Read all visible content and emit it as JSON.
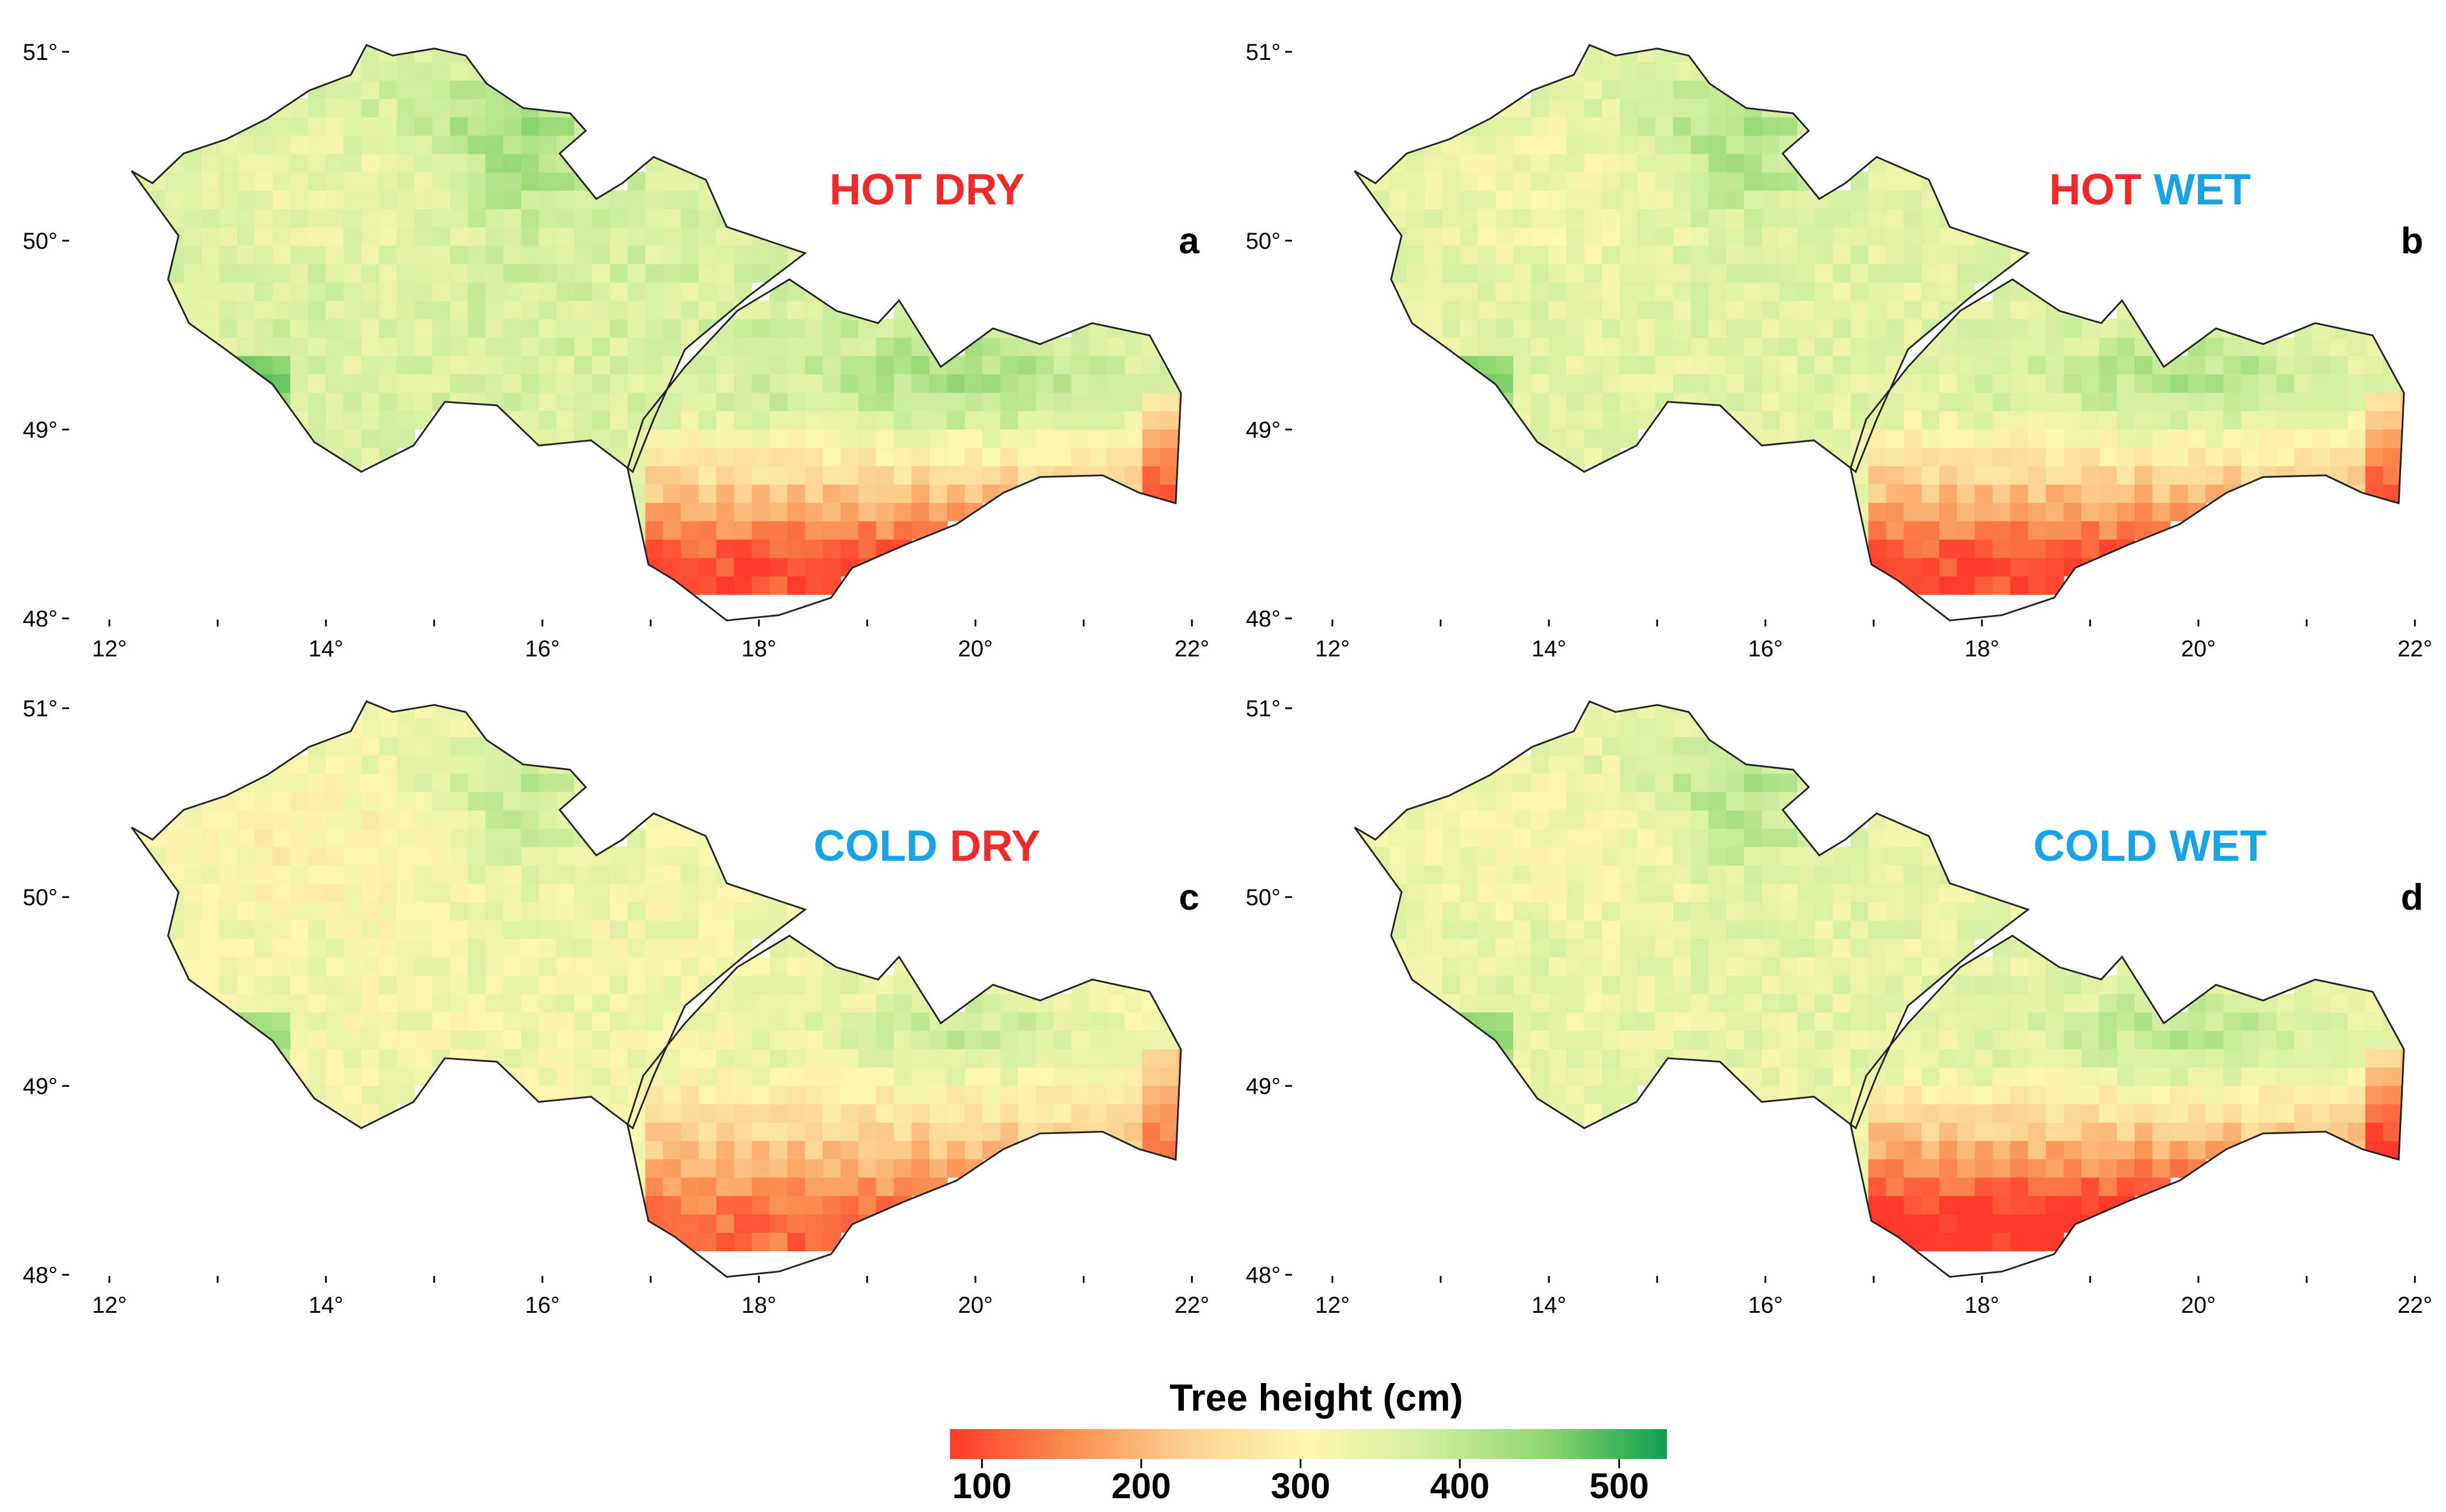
{
  "colors": {
    "hot": "#ee2b2b",
    "dry": "#ee2b2b",
    "cold": "#1aa3e2",
    "wet": "#1aa3e2",
    "outline": "#222222",
    "scale": [
      "#ff3a2a",
      "#fb8e52",
      "#fbd290",
      "#fdf7b0",
      "#cfeea0",
      "#8ed66e",
      "#0d9e4f"
    ]
  },
  "axes": {
    "lon_ticks": [
      "12°",
      "14°",
      "16°",
      "18°",
      "20°",
      "22°"
    ],
    "lon_values": [
      12,
      14,
      16,
      18,
      20,
      22
    ],
    "lat_ticks": [
      "51°",
      "50°",
      "49°",
      "48°"
    ],
    "lat_values": [
      51,
      50,
      49,
      48
    ]
  },
  "panels": [
    {
      "letter": "a",
      "scenario": [
        {
          "text": "HOT",
          "tone": "hot"
        },
        {
          "text": "DRY",
          "tone": "dry"
        }
      ]
    },
    {
      "letter": "b",
      "scenario": [
        {
          "text": "HOT",
          "tone": "hot"
        },
        {
          "text": "WET",
          "tone": "wet"
        }
      ]
    },
    {
      "letter": "c",
      "scenario": [
        {
          "text": "COLD",
          "tone": "cold"
        },
        {
          "text": "DRY",
          "tone": "dry"
        }
      ]
    },
    {
      "letter": "d",
      "scenario": [
        {
          "text": "COLD",
          "tone": "cold"
        },
        {
          "text": "WET",
          "tone": "wet"
        }
      ]
    }
  ],
  "colorbar": {
    "title": "Tree height (cm)",
    "range": [
      80,
      530
    ],
    "ticks": [
      "100",
      "200",
      "300",
      "400",
      "500"
    ],
    "tick_values": [
      100,
      200,
      300,
      400,
      500
    ]
  }
}
